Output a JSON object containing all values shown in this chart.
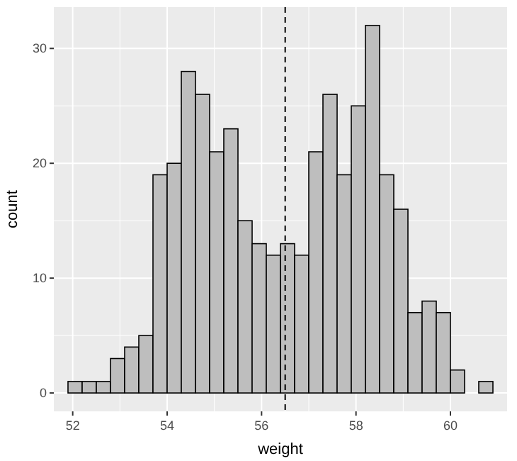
{
  "chart_data": {
    "type": "histogram",
    "xlabel": "weight",
    "ylabel": "count",
    "bins": [
      51.9,
      52.2,
      52.5,
      52.8,
      53.1,
      53.4,
      53.7,
      54.0,
      54.3,
      54.6,
      54.9,
      55.2,
      55.5,
      55.8,
      56.1,
      56.4,
      56.7,
      57.0,
      57.3,
      57.6,
      57.9,
      58.2,
      58.5,
      58.8,
      59.1,
      59.4,
      59.7,
      60.0,
      60.3,
      60.6,
      60.9
    ],
    "values": [
      1,
      1,
      1,
      3,
      4,
      5,
      19,
      20,
      28,
      26,
      21,
      23,
      15,
      13,
      12,
      13,
      12,
      21,
      26,
      19,
      25,
      32,
      19,
      16,
      7,
      8,
      7,
      2,
      0,
      1
    ],
    "color": "#bebebe",
    "xlim": [
      51.6,
      61.2
    ],
    "xticks": [
      52,
      54,
      56,
      58,
      60
    ],
    "ylim": [
      -1.6,
      33.6
    ],
    "yticks": [
      0,
      10,
      20,
      30
    ],
    "ref_lines": [
      {
        "axis": "x",
        "value": 56.5,
        "line_style": "dashed",
        "color": "#000000"
      }
    ],
    "grid": true
  }
}
